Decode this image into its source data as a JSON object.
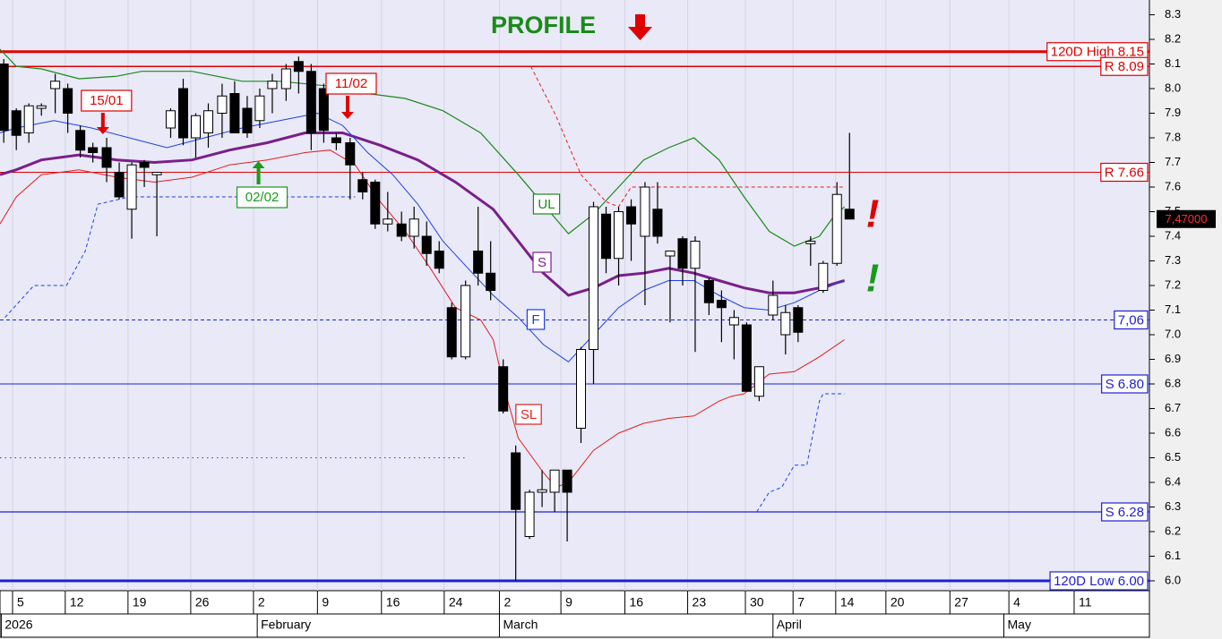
{
  "chart_data": {
    "type": "candlestick",
    "title": "PROFILE",
    "xlim": [
      -1.3,
      90.3
    ],
    "ylim": [
      5.96,
      8.36
    ],
    "yticks": [
      {
        "value": 6.0,
        "label": "6.0"
      },
      6.1,
      6.2,
      6.3,
      6.4,
      6.5,
      6.6,
      6.7,
      6.8,
      6.9,
      {
        "value": 7.0,
        "label": "7.0"
      },
      7.1,
      7.2,
      7.3,
      7.4,
      7.5,
      7.6,
      7.7,
      7.8,
      7.9,
      {
        "value": 8.0,
        "label": "8.0"
      },
      8.1,
      8.2,
      8.3
    ],
    "xticks": [
      {
        "value": -0.3,
        "label": "5"
      },
      {
        "value": 3.9,
        "label": "12"
      },
      {
        "value": 8.9,
        "label": "19"
      },
      {
        "value": 13.9,
        "label": "26"
      },
      {
        "value": 18.9,
        "label": "2"
      },
      {
        "value": 24,
        "label": "9"
      },
      {
        "value": 29.1,
        "label": "16"
      },
      {
        "value": 34.1,
        "label": "24"
      },
      {
        "value": 38.5,
        "label": "2"
      },
      {
        "value": 43.4,
        "label": "9"
      },
      {
        "value": 48.5,
        "label": "16"
      },
      {
        "value": 53.5,
        "label": "23"
      },
      {
        "value": 58.1,
        "label": "30"
      },
      {
        "value": 61.9,
        "label": "7"
      },
      {
        "value": 65.3,
        "label": "14"
      },
      {
        "value": 69.3,
        "label": "20"
      },
      {
        "value": 74.4,
        "label": "27"
      },
      {
        "value": 79.1,
        "label": "4"
      },
      {
        "value": 84.3,
        "label": "11"
      }
    ],
    "month_ticks": [
      {
        "value": -1.2,
        "label": "2026"
      },
      {
        "value": 19.2,
        "label": "February"
      },
      {
        "value": 38.5,
        "label": "March"
      },
      {
        "value": 60.3,
        "label": "April"
      },
      {
        "value": 78.7,
        "label": "May"
      }
    ],
    "grid": true,
    "up_color": "#ffffff",
    "down_color": "#000000",
    "candles": {
      "x": [
        -1.0,
        0,
        1.0,
        2.0,
        3.1,
        4.1,
        5.1,
        6.1,
        7.2,
        8.2,
        9.2,
        10.2,
        11.2,
        12.3,
        13.3,
        14.3,
        15.3,
        16.4,
        17.4,
        18.4,
        19.4,
        20.4,
        21.5,
        22.5,
        23.5,
        24.5,
        25.5,
        26.6,
        27.6,
        28.6,
        29.6,
        30.7,
        31.7,
        32.7,
        33.7,
        34.7,
        35.8,
        36.8,
        37.8,
        38.8,
        39.8,
        40.9,
        41.9,
        42.9,
        43.9,
        45.0,
        46.0,
        47.0,
        48.0,
        49.0,
        50.1,
        51.1,
        52.1,
        53.1,
        54.1,
        55.2,
        56.2,
        57.2,
        58.2,
        59.2,
        60.3,
        61.3,
        62.3,
        63.3,
        64.3,
        65.4,
        66.4
      ],
      "open": [
        8.1,
        7.91,
        7.82,
        7.92,
        8.0,
        8.0,
        7.83,
        7.76,
        7.76,
        7.66,
        7.51,
        7.7,
        7.65,
        7.84,
        8.0,
        7.8,
        7.82,
        7.9,
        7.98,
        7.92,
        7.87,
        8.0,
        8.0,
        8.11,
        8.07,
        8.0,
        7.8,
        7.78,
        7.63,
        7.62,
        7.45,
        7.45,
        7.4,
        7.4,
        7.34,
        7.11,
        6.91,
        7.34,
        7.25,
        6.87,
        6.52,
        6.18,
        6.36,
        6.36,
        6.45,
        6.62,
        6.94,
        7.49,
        7.31,
        7.52,
        7.4,
        7.51,
        7.32,
        7.39,
        7.27,
        7.22,
        7.14,
        7.04,
        7.04,
        6.75,
        7.08,
        7.0,
        7.11,
        7.37,
        7.18,
        7.29,
        7.51
      ],
      "high": [
        8.12,
        7.92,
        7.94,
        7.94,
        8.06,
        8.02,
        7.85,
        7.78,
        7.8,
        7.7,
        7.7,
        7.71,
        7.66,
        7.92,
        8.04,
        7.9,
        7.94,
        8.02,
        8.03,
        7.97,
        8.0,
        8.06,
        8.1,
        8.13,
        8.1,
        8.02,
        7.82,
        7.8,
        7.66,
        7.63,
        7.58,
        7.5,
        7.52,
        7.46,
        7.38,
        7.13,
        7.22,
        7.52,
        7.38,
        6.9,
        6.55,
        6.37,
        6.45,
        6.45,
        6.45,
        6.95,
        7.54,
        7.52,
        7.52,
        7.55,
        7.62,
        7.62,
        7.34,
        7.4,
        7.4,
        7.23,
        7.18,
        7.1,
        7.05,
        6.87,
        7.22,
        7.12,
        7.12,
        7.4,
        7.3,
        7.62,
        7.82
      ],
      "low": [
        7.78,
        7.75,
        7.78,
        7.89,
        7.9,
        7.82,
        7.72,
        7.7,
        7.62,
        7.55,
        7.39,
        7.6,
        7.4,
        7.8,
        7.77,
        7.72,
        7.76,
        7.8,
        7.82,
        7.8,
        7.84,
        7.9,
        7.95,
        7.98,
        7.75,
        7.78,
        7.75,
        7.55,
        7.55,
        7.43,
        7.42,
        7.38,
        7.35,
        7.28,
        7.25,
        6.9,
        6.9,
        7.2,
        7.14,
        6.68,
        6.0,
        6.17,
        6.3,
        6.28,
        6.16,
        6.56,
        6.8,
        7.25,
        7.2,
        7.3,
        7.12,
        7.37,
        7.05,
        7.2,
        6.93,
        7.08,
        6.97,
        6.9,
        6.77,
        6.73,
        7.06,
        6.92,
        6.97,
        7.28,
        7.17,
        7.28,
        7.48
      ],
      "close": [
        7.83,
        7.81,
        7.93,
        7.93,
        8.03,
        7.9,
        7.75,
        7.74,
        7.68,
        7.56,
        7.69,
        7.68,
        7.66,
        7.91,
        7.8,
        7.89,
        7.91,
        7.97,
        7.82,
        7.82,
        7.97,
        8.03,
        8.08,
        8.07,
        7.82,
        7.83,
        7.78,
        7.69,
        7.58,
        7.45,
        7.47,
        7.4,
        7.47,
        7.33,
        7.27,
        6.91,
        7.2,
        7.25,
        7.18,
        6.69,
        6.29,
        6.36,
        6.37,
        6.45,
        6.36,
        6.94,
        7.52,
        7.31,
        7.5,
        7.45,
        7.6,
        7.4,
        7.34,
        7.27,
        7.38,
        7.13,
        7.11,
        7.07,
        6.77,
        6.87,
        7.16,
        7.09,
        7.01,
        7.38,
        7.29,
        7.57,
        7.47
      ]
    },
    "last_price": {
      "value": 7.47,
      "label": "7,47000"
    },
    "series": [
      {
        "name": "UL",
        "color": "#1a8a1a",
        "width": 1.2,
        "style": "solid",
        "x": [
          -1.3,
          0,
          2,
          5,
          8,
          10,
          14,
          18,
          21,
          25,
          28,
          31,
          34,
          37,
          40,
          42,
          44,
          46,
          48,
          50,
          52,
          54,
          56,
          58,
          60,
          62,
          63,
          64,
          65,
          66
        ],
        "values": [
          8.16,
          8.09,
          8.08,
          8.04,
          8.05,
          8.07,
          8.07,
          8.03,
          8.03,
          8.01,
          7.98,
          7.96,
          7.91,
          7.82,
          7.65,
          7.53,
          7.41,
          7.49,
          7.6,
          7.71,
          7.76,
          7.8,
          7.71,
          7.56,
          7.42,
          7.36,
          7.38,
          7.4,
          7.47,
          7.52
        ]
      },
      {
        "name": "S",
        "color": "#7a1f8a",
        "width": 3,
        "style": "solid",
        "x": [
          -1.3,
          0,
          2,
          5,
          8,
          11,
          14,
          17,
          20,
          23,
          26,
          29,
          32,
          35,
          38,
          40,
          42,
          44,
          46,
          48,
          50,
          52,
          54,
          56,
          58,
          60,
          62,
          64,
          66
        ],
        "values": [
          7.65,
          7.67,
          7.71,
          7.73,
          7.71,
          7.7,
          7.71,
          7.75,
          7.78,
          7.82,
          7.82,
          7.77,
          7.71,
          7.62,
          7.51,
          7.38,
          7.25,
          7.16,
          7.19,
          7.24,
          7.25,
          7.27,
          7.25,
          7.22,
          7.19,
          7.17,
          7.17,
          7.19,
          7.22
        ]
      },
      {
        "name": "F",
        "color": "#2040e0",
        "width": 1,
        "style": "solid",
        "x": [
          -1.3,
          0,
          3,
          6,
          9,
          12,
          15,
          18,
          21,
          24,
          26,
          28,
          30,
          32,
          34,
          36,
          38,
          40,
          42,
          44,
          46,
          48,
          50,
          52,
          54,
          56,
          58,
          60,
          62,
          64,
          66
        ],
        "values": [
          7.82,
          7.84,
          7.87,
          7.84,
          7.8,
          7.76,
          7.8,
          7.84,
          7.87,
          7.9,
          7.85,
          7.74,
          7.65,
          7.53,
          7.38,
          7.27,
          7.16,
          7.07,
          6.96,
          6.89,
          7.0,
          7.11,
          7.18,
          7.22,
          7.22,
          7.16,
          7.11,
          7.1,
          7.13,
          7.18,
          7.22
        ]
      },
      {
        "name": "SL",
        "color": "#e02020",
        "width": 1,
        "style": "solid",
        "x": [
          -1.3,
          0,
          2,
          5,
          8,
          11,
          14,
          17,
          20,
          23,
          25,
          27,
          29,
          31,
          33,
          35,
          37,
          38,
          39,
          40,
          42,
          43,
          44,
          46,
          48,
          50,
          52,
          54,
          56,
          57,
          58,
          60,
          62,
          64,
          66
        ],
        "values": [
          7.45,
          7.56,
          7.65,
          7.67,
          7.64,
          7.62,
          7.64,
          7.69,
          7.71,
          7.74,
          7.75,
          7.69,
          7.54,
          7.42,
          7.27,
          7.11,
          7.06,
          6.98,
          6.76,
          6.58,
          6.44,
          6.38,
          6.4,
          6.53,
          6.6,
          6.64,
          6.66,
          6.67,
          6.73,
          6.75,
          6.76,
          6.84,
          6.85,
          6.91,
          6.98
        ]
      },
      {
        "color": "#e02020",
        "width": 1,
        "style": "dashed",
        "x": [
          41,
          43,
          45,
          47,
          48,
          49,
          66
        ],
        "values": [
          8.09,
          7.89,
          7.65,
          7.54,
          7.52,
          7.6,
          7.6
        ]
      },
      {
        "color": "#2040e0",
        "width": 1,
        "style": "dashed",
        "x": [
          -0.9,
          1.4,
          4,
          5.5,
          6.5,
          9,
          27
        ],
        "values": [
          7.07,
          7.2,
          7.2,
          7.34,
          7.53,
          7.56,
          7.56
        ]
      },
      {
        "color": "#2040e0",
        "width": 1,
        "style": "dotted",
        "x": [
          -1.3,
          36
        ],
        "values": [
          6.5,
          6.5
        ]
      },
      {
        "color": "#2040e0",
        "width": 1,
        "style": "dashed",
        "x": [
          59,
          60,
          61,
          62,
          63,
          64,
          64.3,
          66
        ],
        "values": [
          6.28,
          6.36,
          6.38,
          6.47,
          6.47,
          6.73,
          6.76,
          6.76
        ]
      }
    ],
    "levels": [
      {
        "value": 8.15,
        "label": "120D High 8.15",
        "color": "#e00000",
        "width": 3,
        "style": "solid"
      },
      {
        "value": 8.09,
        "label": "R 8.09",
        "color": "#e00000",
        "width": 1.5,
        "style": "solid"
      },
      {
        "value": 7.66,
        "label": "R 7.66",
        "color": "#e00000",
        "width": 1,
        "style": "solid"
      },
      {
        "value": 7.06,
        "label": "7,06",
        "color": "#2020d0",
        "width": 1,
        "style": "dashed"
      },
      {
        "value": 6.8,
        "label": "S 6.80",
        "color": "#2020d0",
        "width": 1,
        "style": "solid"
      },
      {
        "value": 6.28,
        "label": "S 6.28",
        "color": "#2020d0",
        "width": 1.2,
        "style": "solid"
      },
      {
        "value": 6.0,
        "label": "120D Low 6.00",
        "color": "#2020d0",
        "width": 3,
        "style": "solid"
      }
    ],
    "flags": [
      {
        "label": "15/01",
        "x": 6.9,
        "direction": "down",
        "color": "#e00000"
      },
      {
        "label": "11/02",
        "x": 26.4,
        "direction": "down",
        "color": "#e00000"
      },
      {
        "label": "02/02",
        "x": 19.3,
        "direction": "up",
        "color": "#1a9a1a"
      }
    ],
    "annotations": [
      {
        "text": "!",
        "color": "#e00000"
      },
      {
        "text": "!",
        "color": "#1a9a1a"
      }
    ]
  }
}
